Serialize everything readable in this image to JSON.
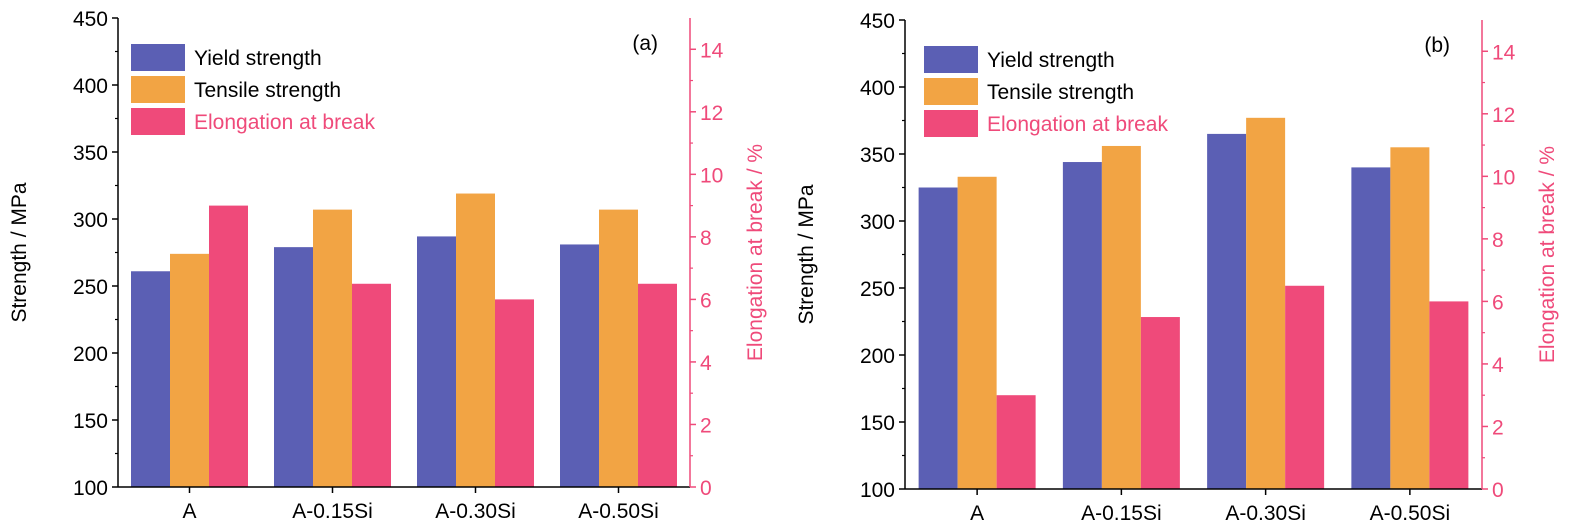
{
  "chart_data": [
    {
      "type": "bar",
      "panel_label": "(a)",
      "categories": [
        "A",
        "A-0.15Si",
        "A-0.30Si",
        "A-0.50Si"
      ],
      "series": [
        {
          "name": "Yield strength",
          "axis": "left",
          "color": "#5b5fb4",
          "values": [
            261,
            279,
            287,
            281
          ]
        },
        {
          "name": "Tensile strength",
          "axis": "left",
          "color": "#f2a444",
          "values": [
            274,
            307,
            319,
            307
          ]
        },
        {
          "name": "Elongation at break",
          "axis": "right",
          "color": "#ef4a7a",
          "values": [
            9.0,
            6.5,
            6.0,
            6.5
          ]
        }
      ],
      "ylabel": "Strength / MPa",
      "ylim": [
        100,
        450
      ],
      "yticks": [
        100,
        150,
        200,
        250,
        300,
        350,
        400,
        450
      ],
      "y2label": "Elongation at break / %",
      "y2lim": [
        0,
        15
      ],
      "y2ticks": [
        0,
        2,
        4,
        6,
        8,
        10,
        12,
        14
      ],
      "legend_position": "top-left",
      "grid": false
    },
    {
      "type": "bar",
      "panel_label": "(b)",
      "categories": [
        "A",
        "A-0.15Si",
        "A-0.30Si",
        "A-0.50Si"
      ],
      "series": [
        {
          "name": "Yield strength",
          "axis": "left",
          "color": "#5b5fb4",
          "values": [
            325,
            344,
            365,
            340
          ]
        },
        {
          "name": "Tensile strength",
          "axis": "left",
          "color": "#f2a444",
          "values": [
            333,
            356,
            377,
            355
          ]
        },
        {
          "name": "Elongation at break",
          "axis": "right",
          "color": "#ef4a7a",
          "values": [
            3.0,
            5.5,
            6.5,
            6.0
          ]
        }
      ],
      "ylabel": "Strength / MPa",
      "ylim": [
        100,
        450
      ],
      "yticks": [
        100,
        150,
        200,
        250,
        300,
        350,
        400,
        450
      ],
      "y2label": "Elongation at break / %",
      "y2lim": [
        0,
        15
      ],
      "y2ticks": [
        0,
        2,
        4,
        6,
        8,
        10,
        12,
        14
      ],
      "legend_position": "top-left",
      "grid": false
    }
  ],
  "colors": {
    "axis": "#000000",
    "right_axis": "#ef4a7a"
  }
}
